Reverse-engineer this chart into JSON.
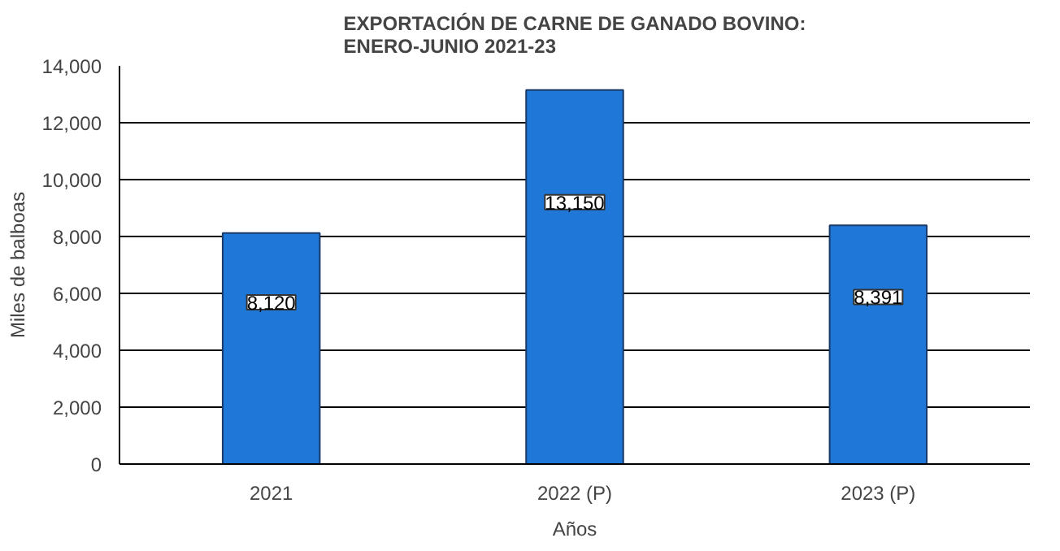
{
  "chart_data": {
    "type": "bar",
    "title": "EXPORTACIÓN DE CARNE DE GANADO BOVINO:\nENERO-JUNIO 2021-23",
    "xlabel": "Años",
    "ylabel": "Miles de balboas",
    "categories": [
      "2021",
      "2022 (P)",
      "2023 (P)"
    ],
    "values": [
      8120,
      13150,
      8391
    ],
    "color": "#1f78d8",
    "value_labels": [
      "8,120",
      "13,150",
      "8,391"
    ],
    "ylim": [
      0,
      14000
    ],
    "yticks": [
      {
        "value": 0,
        "label": "0"
      },
      {
        "value": 2000,
        "label": "2,000"
      },
      {
        "value": 4000,
        "label": "4,000"
      },
      {
        "value": 6000,
        "label": "6,000"
      },
      {
        "value": 8000,
        "label": "8,000"
      },
      {
        "value": 10000,
        "label": "10,000"
      },
      {
        "value": 12000,
        "label": "12,000"
      },
      {
        "value": 14000,
        "label": "14,000"
      }
    ],
    "grid": "y"
  }
}
